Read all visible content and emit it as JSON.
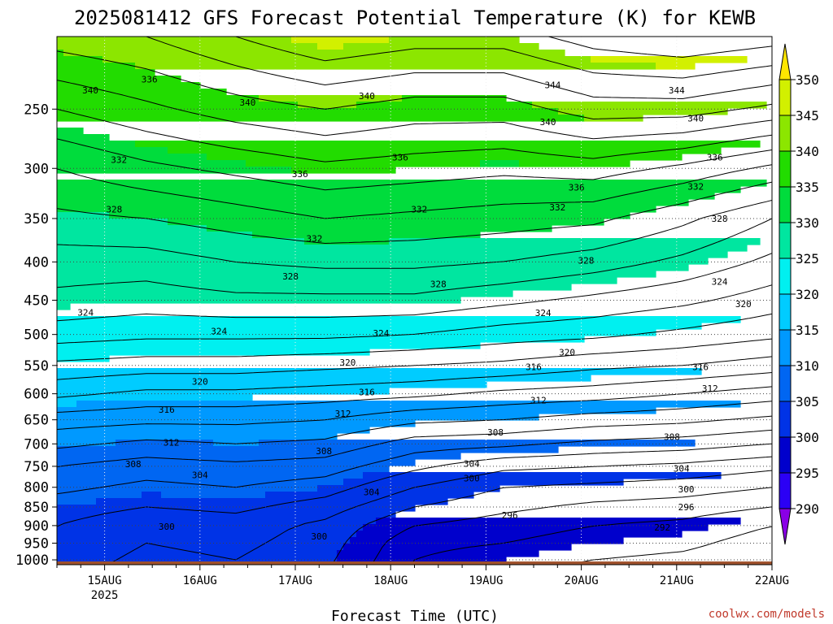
{
  "chart_data": {
    "type": "heatmap",
    "title": "2025081412 GFS Forecast Potential Temperature (K) for KEWB",
    "xlabel": "Forecast Time (UTC)",
    "ylabel": "",
    "credit": "coolwx.com/models",
    "x_ticks": [
      {
        "label": "15AUG",
        "sub": "2025",
        "day": 0.5
      },
      {
        "label": "16AUG",
        "sub": "",
        "day": 1.5
      },
      {
        "label": "17AUG",
        "sub": "",
        "day": 2.5
      },
      {
        "label": "18AUG",
        "sub": "",
        "day": 3.5
      },
      {
        "label": "19AUG",
        "sub": "",
        "day": 4.5
      },
      {
        "label": "20AUG",
        "sub": "",
        "day": 5.5
      },
      {
        "label": "21AUG",
        "sub": "",
        "day": 6.5
      },
      {
        "label": "22AUG",
        "sub": "",
        "day": 7.5
      }
    ],
    "xlim_days": [
      0,
      7.5
    ],
    "y_ticks": [
      "250",
      "300",
      "350",
      "400",
      "450",
      "500",
      "550",
      "600",
      "650",
      "700",
      "750",
      "800",
      "850",
      "900",
      "950",
      "1000"
    ],
    "ylim_hPa": [
      1015,
      200
    ],
    "y_scale": "log",
    "grid": true,
    "surface_pressure_hPa": 1005,
    "colorbar": {
      "levels": [
        290,
        295,
        300,
        305,
        310,
        315,
        320,
        325,
        330,
        335,
        340,
        345,
        350
      ],
      "colors": [
        "#8a00e6",
        "#2b00f5",
        "#0000cc",
        "#0033e6",
        "#0066f2",
        "#0099ff",
        "#00ccff",
        "#00f0f0",
        "#00e6a0",
        "#00dc3c",
        "#22dc00",
        "#8ce600",
        "#d2f000",
        "#ffe600"
      ]
    },
    "series": [
      {
        "pressure_hPa": 1000,
        "theta_K": [
          303.0,
          301.5,
          302.0,
          300.5,
          296.0,
          295.0,
          294.0,
          293.5,
          292.5
        ]
      },
      {
        "pressure_hPa": 950,
        "theta_K": [
          303.5,
          302.0,
          302.5,
          301.0,
          296.5,
          296.0,
          295.0,
          294.5,
          293.0
        ]
      },
      {
        "pressure_hPa": 900,
        "theta_K": [
          304.0,
          302.5,
          303.0,
          301.5,
          298.0,
          297.0,
          296.0,
          295.5,
          294.0
        ]
      },
      {
        "pressure_hPa": 850,
        "theta_K": [
          305.0,
          304.0,
          304.5,
          303.0,
          300.0,
          298.5,
          297.5,
          297.0,
          296.0
        ]
      },
      {
        "pressure_hPa": 800,
        "theta_K": [
          306.5,
          305.5,
          306.0,
          305.0,
          302.0,
          300.0,
          299.5,
          299.0,
          298.0
        ]
      },
      {
        "pressure_hPa": 750,
        "theta_K": [
          308.0,
          307.0,
          307.5,
          307.0,
          304.5,
          302.5,
          302.0,
          301.5,
          300.5
        ]
      },
      {
        "pressure_hPa": 700,
        "theta_K": [
          310.5,
          309.5,
          310.0,
          309.5,
          307.0,
          306.5,
          305.5,
          305.0,
          304.0
        ]
      },
      {
        "pressure_hPa": 650,
        "theta_K": [
          313.0,
          312.5,
          312.5,
          312.0,
          310.5,
          310.0,
          309.0,
          308.5,
          307.5
        ]
      },
      {
        "pressure_hPa": 600,
        "theta_K": [
          316.5,
          315.5,
          315.5,
          315.0,
          314.5,
          313.5,
          313.0,
          312.0,
          311.0
        ]
      },
      {
        "pressure_hPa": 550,
        "theta_K": [
          319.5,
          319.0,
          319.0,
          318.5,
          318.0,
          317.5,
          316.5,
          316.0,
          315.0
        ]
      },
      {
        "pressure_hPa": 500,
        "theta_K": [
          323.0,
          322.5,
          322.5,
          322.5,
          322.0,
          321.0,
          320.5,
          319.5,
          318.5
        ]
      },
      {
        "pressure_hPa": 450,
        "theta_K": [
          325.5,
          325.0,
          325.5,
          325.5,
          325.5,
          324.5,
          323.5,
          322.5,
          321.0
        ]
      },
      {
        "pressure_hPa": 400,
        "theta_K": [
          327.0,
          327.0,
          328.0,
          328.5,
          328.5,
          328.0,
          327.0,
          325.5,
          323.5
        ]
      },
      {
        "pressure_hPa": 350,
        "theta_K": [
          329.5,
          330.0,
          331.0,
          332.0,
          331.5,
          331.0,
          330.5,
          328.5,
          326.0
        ]
      },
      {
        "pressure_hPa": 300,
        "theta_K": [
          332.0,
          333.5,
          334.5,
          335.5,
          335.0,
          334.5,
          335.0,
          333.5,
          331.5
        ]
      },
      {
        "pressure_hPa": 250,
        "theta_K": [
          336.0,
          337.5,
          339.0,
          340.0,
          339.0,
          339.0,
          341.0,
          341.0,
          339.5
        ]
      },
      {
        "pressure_hPa": 200,
        "theta_K": [
          341.0,
          342.0,
          344.0,
          346.0,
          345.0,
          345.0,
          347.0,
          348.0,
          347.0
        ]
      }
    ],
    "x_days": [
      0.0,
      0.9375,
      1.875,
      2.8125,
      3.75,
      4.6875,
      5.625,
      6.5625,
      7.5
    ],
    "contour_interval_K": 2,
    "contour_labels": [
      {
        "text": "336",
        "day": 0.97,
        "hPa": 228
      },
      {
        "text": "340",
        "day": 0.35,
        "hPa": 236
      },
      {
        "text": "340",
        "day": 2.0,
        "hPa": 245
      },
      {
        "text": "340",
        "day": 3.25,
        "hPa": 240
      },
      {
        "text": "344",
        "day": 5.2,
        "hPa": 232
      },
      {
        "text": "344",
        "day": 6.5,
        "hPa": 236
      },
      {
        "text": "340",
        "day": 5.15,
        "hPa": 260
      },
      {
        "text": "340",
        "day": 6.7,
        "hPa": 257
      },
      {
        "text": "336",
        "day": 3.6,
        "hPa": 290
      },
      {
        "text": "336",
        "day": 2.55,
        "hPa": 305
      },
      {
        "text": "336",
        "day": 5.45,
        "hPa": 318
      },
      {
        "text": "336",
        "day": 6.9,
        "hPa": 290
      },
      {
        "text": "332",
        "day": 0.65,
        "hPa": 292
      },
      {
        "text": "332",
        "day": 3.8,
        "hPa": 340
      },
      {
        "text": "332",
        "day": 5.25,
        "hPa": 338
      },
      {
        "text": "332",
        "day": 6.7,
        "hPa": 317
      },
      {
        "text": "328",
        "day": 0.6,
        "hPa": 340
      },
      {
        "text": "328",
        "day": 6.95,
        "hPa": 350
      },
      {
        "text": "332",
        "day": 2.7,
        "hPa": 372
      },
      {
        "text": "328",
        "day": 5.55,
        "hPa": 398
      },
      {
        "text": "328",
        "day": 2.45,
        "hPa": 418
      },
      {
        "text": "328",
        "day": 4.0,
        "hPa": 428
      },
      {
        "text": "324",
        "day": 6.95,
        "hPa": 425
      },
      {
        "text": "320",
        "day": 7.2,
        "hPa": 455
      },
      {
        "text": "324",
        "day": 0.3,
        "hPa": 467
      },
      {
        "text": "324",
        "day": 5.1,
        "hPa": 468
      },
      {
        "text": "324",
        "day": 1.7,
        "hPa": 495
      },
      {
        "text": "324",
        "day": 3.4,
        "hPa": 498
      },
      {
        "text": "320",
        "day": 5.35,
        "hPa": 528
      },
      {
        "text": "320",
        "day": 3.05,
        "hPa": 545
      },
      {
        "text": "316",
        "day": 5.0,
        "hPa": 552
      },
      {
        "text": "316",
        "day": 6.75,
        "hPa": 552
      },
      {
        "text": "320",
        "day": 1.5,
        "hPa": 578
      },
      {
        "text": "316",
        "day": 3.25,
        "hPa": 597
      },
      {
        "text": "312",
        "day": 6.85,
        "hPa": 590
      },
      {
        "text": "312",
        "day": 5.05,
        "hPa": 612
      },
      {
        "text": "316",
        "day": 1.15,
        "hPa": 630
      },
      {
        "text": "312",
        "day": 3.0,
        "hPa": 638
      },
      {
        "text": "308",
        "day": 4.6,
        "hPa": 675
      },
      {
        "text": "308",
        "day": 6.45,
        "hPa": 685
      },
      {
        "text": "312",
        "day": 1.2,
        "hPa": 697
      },
      {
        "text": "308",
        "day": 2.8,
        "hPa": 715
      },
      {
        "text": "308",
        "day": 0.8,
        "hPa": 745
      },
      {
        "text": "304",
        "day": 4.35,
        "hPa": 744
      },
      {
        "text": "304",
        "day": 6.55,
        "hPa": 755
      },
      {
        "text": "304",
        "day": 1.5,
        "hPa": 770
      },
      {
        "text": "300",
        "day": 4.35,
        "hPa": 778
      },
      {
        "text": "300",
        "day": 6.6,
        "hPa": 805
      },
      {
        "text": "304",
        "day": 3.3,
        "hPa": 812
      },
      {
        "text": "296",
        "day": 6.6,
        "hPa": 850
      },
      {
        "text": "296",
        "day": 4.75,
        "hPa": 872
      },
      {
        "text": "300",
        "day": 1.15,
        "hPa": 903
      },
      {
        "text": "292",
        "day": 6.35,
        "hPa": 905
      },
      {
        "text": "300",
        "day": 2.75,
        "hPa": 930
      }
    ]
  }
}
